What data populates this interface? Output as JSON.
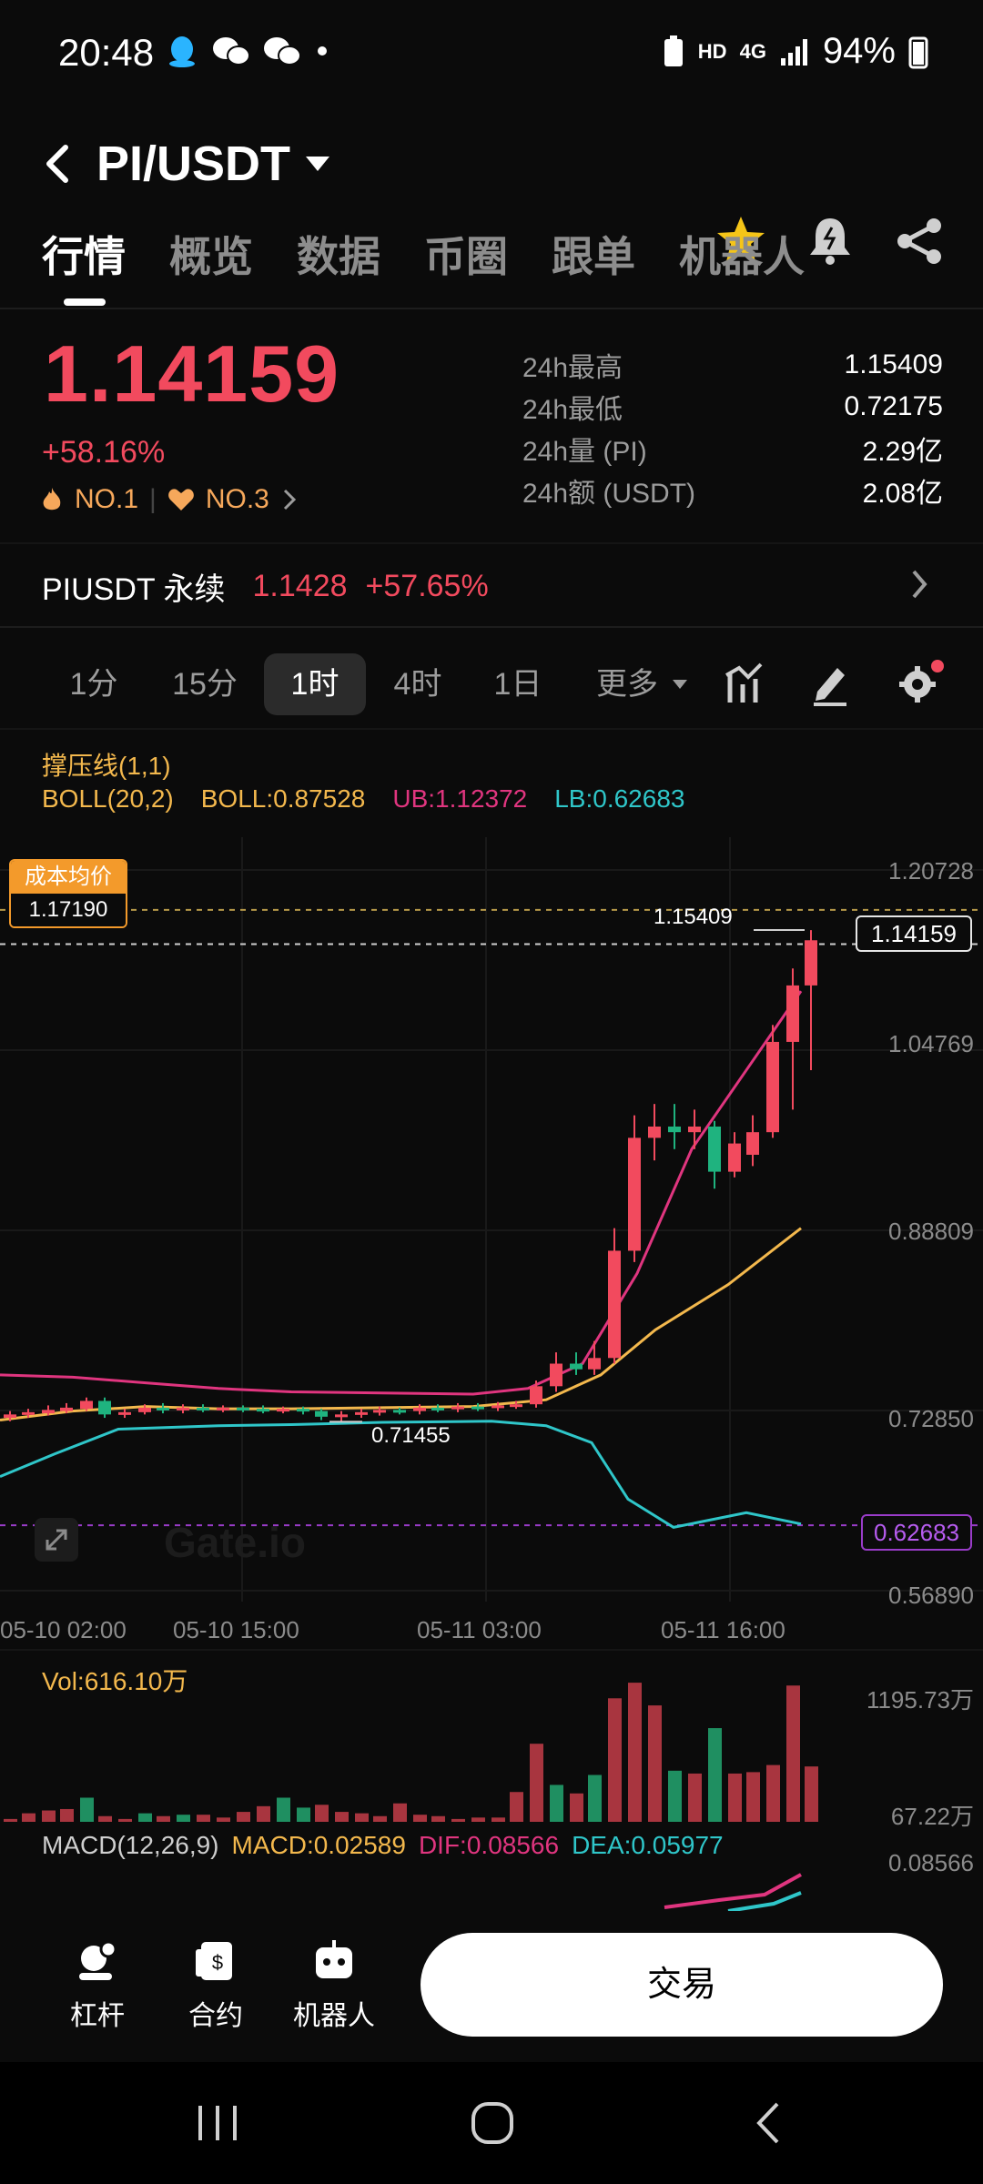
{
  "status_bar": {
    "time": "20:48",
    "net": "HD",
    "network_type": "4G",
    "battery": "94%"
  },
  "header": {
    "pair": "PI/USDT"
  },
  "tabs": [
    "行情",
    "概览",
    "数据",
    "币圈",
    "跟单",
    "机器人"
  ],
  "ticker": {
    "price": "1.14159",
    "change": "+58.16%",
    "rank1": "NO.1",
    "rank2": "NO.3",
    "stats": [
      {
        "label": "24h最高",
        "value": "1.15409"
      },
      {
        "label": "24h最低",
        "value": "0.72175"
      },
      {
        "label": "24h量 (PI)",
        "value": "2.29亿"
      },
      {
        "label": "24h额 (USDT)",
        "value": "2.08亿"
      }
    ]
  },
  "perpetual": {
    "name": "PIUSDT 永续",
    "price": "1.1428",
    "change": "+57.65%"
  },
  "intervals": {
    "items": [
      "1分",
      "15分",
      "1时",
      "4时",
      "1日",
      "更多"
    ],
    "selected": "1时"
  },
  "indicators": {
    "line1": "撑压线(1,1)",
    "boll_label": "BOLL(20,2)",
    "boll": "BOLL:0.87528",
    "ub": "UB:1.12372",
    "lb": "LB:0.62683"
  },
  "chart": {
    "cost_label": "成本均价",
    "cost_value": "1.17190",
    "high_label": "1.15409",
    "low_label": "0.71455",
    "current_price": "1.14159",
    "lb_tag": "0.62683",
    "y_ticks": [
      "1.20728",
      "1.04769",
      "0.88809",
      "0.72850",
      "0.56890"
    ],
    "x_ticks": [
      "05-10 02:00",
      "05-10 15:00",
      "05-11 03:00",
      "05-11 16:00"
    ],
    "watermark": "Gate.io"
  },
  "volume": {
    "label": "Vol:616.10万",
    "top": "1195.73万",
    "bottom": "67.22万"
  },
  "macd": {
    "label": "MACD(12,26,9)",
    "macd": "MACD:0.02589",
    "dif": "DIF:0.08566",
    "dea": "DEA:0.05977",
    "axis": "0.08566"
  },
  "bottom_bar": {
    "items": [
      "杠杆",
      "合约",
      "机器人"
    ],
    "trade": "交易"
  },
  "colors": {
    "up": "#f24a5e",
    "down": "#1fb37f",
    "boll_mid": "#f3b84d",
    "ub": "#e0357f",
    "lb": "#2fc6c9"
  }
}
